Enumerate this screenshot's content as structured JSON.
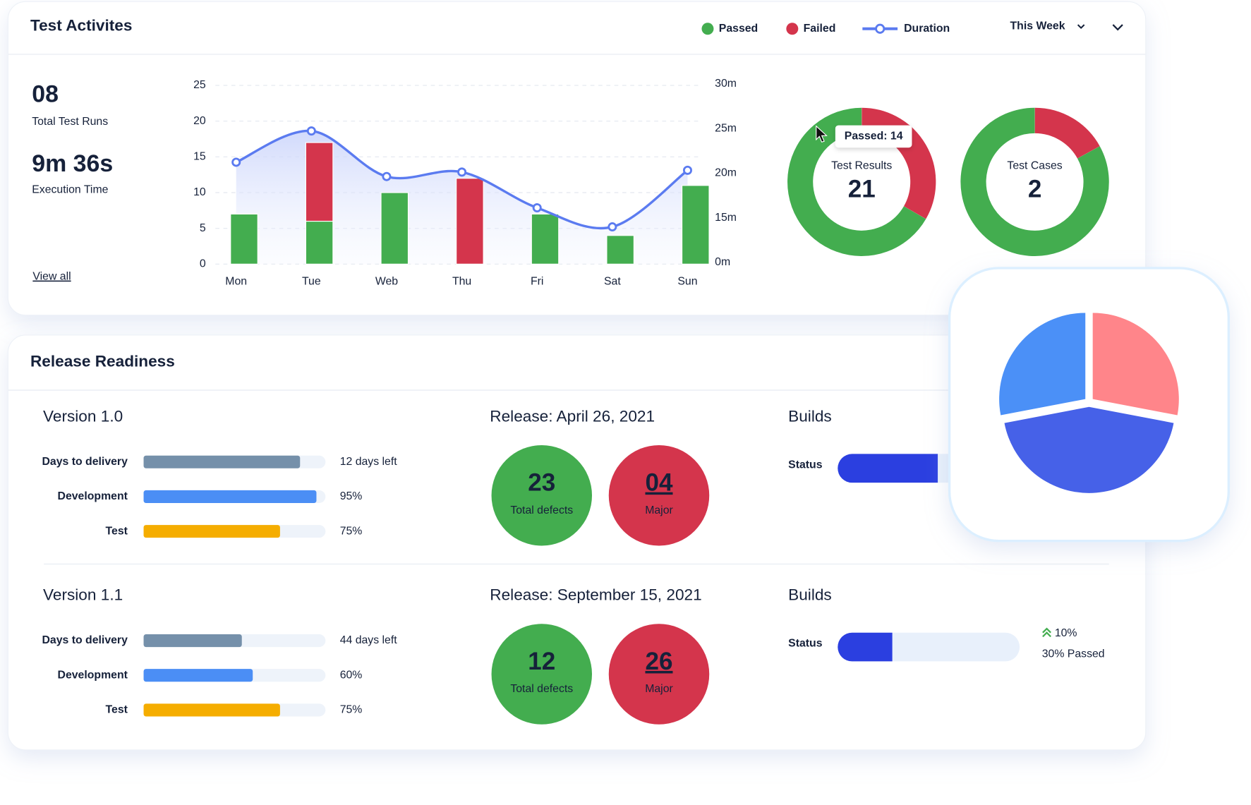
{
  "test_activities": {
    "title": "Test Activites",
    "period": "This Week",
    "stats": [
      {
        "value": "08",
        "label": "Total Test Runs"
      },
      {
        "value": "9m 36s",
        "label": "Execution Time"
      }
    ],
    "link": "View all",
    "chart": {
      "type": "bar",
      "categories": [
        "Mon",
        "Tue",
        "Web",
        "Thu",
        "Fri",
        "Sat",
        "Sun"
      ],
      "series": [
        {
          "name": "Passed",
          "color": "#43ad4f",
          "values": [
            7,
            6,
            10,
            0,
            7,
            4,
            11
          ]
        },
        {
          "name": "Failed",
          "color": "#d4354c",
          "values": [
            0,
            11,
            0,
            12,
            0,
            0,
            0
          ]
        },
        {
          "name": "Duration",
          "color": "#5b7bf0",
          "type": "line",
          "axis": "y2",
          "values": [
            21.4,
            24.9,
            19.8,
            20.3,
            16.3,
            12.5,
            20.5
          ]
        }
      ],
      "ylim": [
        0,
        25
      ],
      "yticks": [
        0,
        5,
        10,
        15,
        20,
        25
      ],
      "y2lim": [
        0,
        30
      ],
      "y2ticks": [
        {
          "value": 0,
          "label": "0m"
        },
        {
          "value": 15,
          "label": "15m"
        },
        {
          "value": 20,
          "label": "20m"
        },
        {
          "value": 25,
          "label": "25m"
        },
        {
          "value": 30,
          "label": "30m"
        }
      ],
      "grid": true
    },
    "donuts": [
      {
        "label": "Test Results",
        "total": "21",
        "values": [
          14,
          7
        ]
      },
      {
        "label": "Test Cases",
        "total": "2",
        "values": [
          83,
          17
        ]
      }
    ],
    "tooltip": "Passed: 14"
  },
  "pie": {
    "values": [
      28,
      44,
      28
    ],
    "colors": [
      "#ff858a",
      "#4661e8",
      "#4b90f7"
    ]
  },
  "release_readiness": {
    "title": "Release Readiness",
    "releases": [
      {
        "version": "Version 1.0",
        "progress": [
          {
            "label": "Days to delivery",
            "value": 86,
            "text": "12 days left",
            "color": "#7590aa",
            "text_color": "#d4354c"
          },
          {
            "label": "Development",
            "value": 95,
            "text": "95%",
            "color": "#4b8ef5"
          },
          {
            "label": "Test",
            "value": 75,
            "text": "75%",
            "color": "#f5ad00"
          }
        ],
        "release": "Release: April 26, 2021",
        "defects": [
          {
            "value": "23",
            "label": "Total defects",
            "color": "#43ad4f"
          },
          {
            "value": "04",
            "label": "Major",
            "color": "#d4354c"
          }
        ],
        "builds": "Builds",
        "status": {
          "label": "Status",
          "value": 55
        }
      },
      {
        "version": "Version 1.1",
        "progress": [
          {
            "label": "Days to delivery",
            "value": 54,
            "text": "44 days left",
            "color": "#7590aa"
          },
          {
            "label": "Development",
            "value": 60,
            "text": "60%",
            "color": "#4b8ef5"
          },
          {
            "label": "Test",
            "value": 75,
            "text": "75%",
            "color": "#f5ad00"
          }
        ],
        "release": "Release: September 15, 2021",
        "defects": [
          {
            "value": "12",
            "label": "Total defects",
            "color": "#43ad4f"
          },
          {
            "value": "26",
            "label": "Major",
            "color": "#d4354c"
          }
        ],
        "builds": "Builds",
        "status": {
          "label": "Status",
          "value": 30,
          "change": "10%",
          "text": "30% Passed"
        }
      }
    ]
  }
}
